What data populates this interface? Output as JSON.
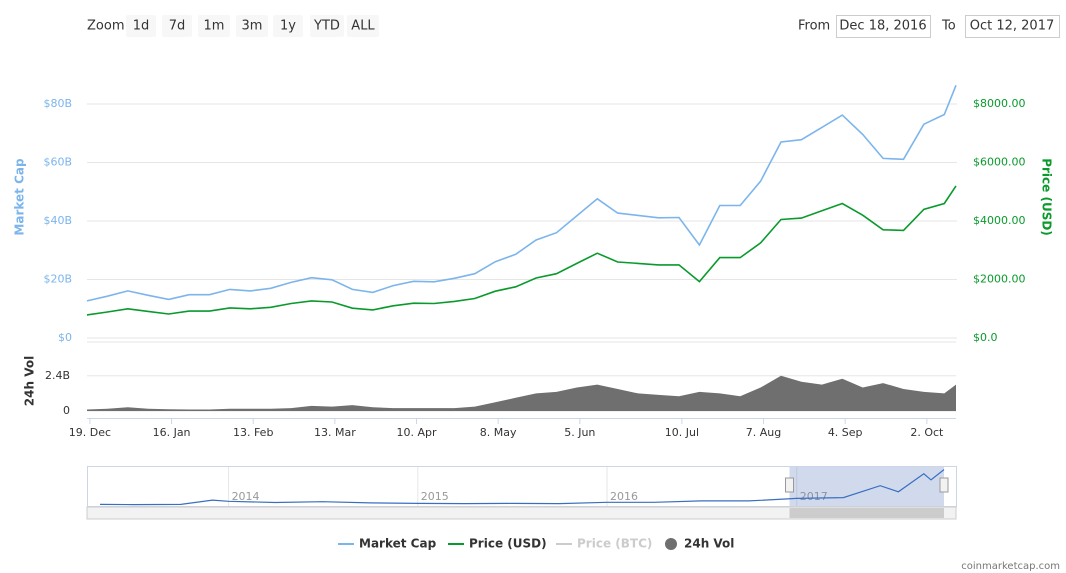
{
  "ui": {
    "zoom_label": "Zoom",
    "zoom_buttons": [
      "1d",
      "7d",
      "1m",
      "3m",
      "1y",
      "YTD",
      "ALL"
    ],
    "from_label": "From",
    "from_value": "Dec 18, 2016",
    "to_label": "To",
    "to_value": "Oct 12, 2017",
    "credit": "coinmarketcap.com"
  },
  "chart_data": {
    "type": "line",
    "y_label": "Market Cap",
    "y2_label": "Price (USD)",
    "y3_label": "24h Vol",
    "x": [
      "2016-12-18",
      "2016-12-25",
      "2017-01-01",
      "2017-01-08",
      "2017-01-15",
      "2017-01-22",
      "2017-01-29",
      "2017-02-05",
      "2017-02-12",
      "2017-02-19",
      "2017-02-26",
      "2017-03-05",
      "2017-03-12",
      "2017-03-19",
      "2017-03-26",
      "2017-04-02",
      "2017-04-09",
      "2017-04-16",
      "2017-04-23",
      "2017-04-30",
      "2017-05-07",
      "2017-05-14",
      "2017-05-21",
      "2017-05-28",
      "2017-06-04",
      "2017-06-11",
      "2017-06-18",
      "2017-06-25",
      "2017-07-02",
      "2017-07-09",
      "2017-07-16",
      "2017-07-23",
      "2017-07-30",
      "2017-08-06",
      "2017-08-13",
      "2017-08-20",
      "2017-08-27",
      "2017-09-03",
      "2017-09-10",
      "2017-09-17",
      "2017-09-24",
      "2017-10-01",
      "2017-10-08",
      "2017-10-12"
    ],
    "xlim": [
      "2016-12-18",
      "2017-10-12"
    ],
    "xticks": [
      {
        "value": "2016-12-19",
        "label": "19. Dec"
      },
      {
        "value": "2017-01-16",
        "label": "16. Jan"
      },
      {
        "value": "2017-02-13",
        "label": "13. Feb"
      },
      {
        "value": "2017-03-13",
        "label": "13. Mar"
      },
      {
        "value": "2017-04-10",
        "label": "10. Apr"
      },
      {
        "value": "2017-05-08",
        "label": "8. May"
      },
      {
        "value": "2017-06-05",
        "label": "5. Jun"
      },
      {
        "value": "2017-07-10",
        "label": "10. Jul"
      },
      {
        "value": "2017-08-07",
        "label": "7. Aug"
      },
      {
        "value": "2017-09-04",
        "label": "4. Sep"
      },
      {
        "value": "2017-10-02",
        "label": "2. Oct"
      }
    ],
    "ylim": [
      0,
      86.5
    ],
    "yticks": [
      {
        "value": 0,
        "label": "$0"
      },
      {
        "value": 20,
        "label": "$20B"
      },
      {
        "value": 40,
        "label": "$40B"
      },
      {
        "value": 60,
        "label": "$60B"
      },
      {
        "value": 80,
        "label": "$80B"
      }
    ],
    "y2lim": [
      0,
      8650
    ],
    "y2ticks": [
      {
        "value": 0,
        "label": "$0.0"
      },
      {
        "value": 2000,
        "label": "$2000.00"
      },
      {
        "value": 4000,
        "label": "$4000.00"
      },
      {
        "value": 6000,
        "label": "$6000.00"
      },
      {
        "value": 8000,
        "label": "$8000.00"
      }
    ],
    "y3lim": [
      0,
      4.5
    ],
    "y3ticks": [
      0,
      {
        "value": 2.4,
        "label": "2.4B"
      }
    ],
    "grid": true,
    "series": [
      {
        "name": "Market Cap",
        "color": "#7cb5ec",
        "axis": "y",
        "values": [
          12.7,
          14.3,
          16.1,
          14.6,
          13.2,
          14.8,
          14.8,
          16.6,
          16.1,
          17.0,
          19.0,
          20.6,
          19.9,
          16.6,
          15.6,
          17.9,
          19.4,
          19.2,
          20.4,
          22.0,
          26.1,
          28.6,
          33.5,
          36.0,
          41.8,
          47.6,
          42.7,
          41.9,
          41.1,
          41.2,
          31.8,
          45.3,
          45.3,
          53.6,
          67.0,
          67.8,
          72.0,
          76.2,
          69.6,
          61.4,
          61.1,
          73.1,
          76.4,
          86.4
        ]
      },
      {
        "name": "Price (USD)",
        "color": "#0a9a2c",
        "axis": "y2",
        "values": [
          790,
          890,
          1000,
          910,
          820,
          920,
          920,
          1030,
          1000,
          1050,
          1180,
          1270,
          1230,
          1020,
          960,
          1100,
          1190,
          1180,
          1250,
          1350,
          1600,
          1750,
          2050,
          2200,
          2550,
          2900,
          2600,
          2550,
          2500,
          2500,
          1930,
          2750,
          2750,
          3250,
          4050,
          4100,
          4350,
          4600,
          4200,
          3700,
          3680,
          4400,
          4600,
          5200
        ]
      },
      {
        "name": "Price (BTC)",
        "color": "#cccccc",
        "visible": false
      },
      {
        "name": "24h Vol",
        "color": "#6f6f6f",
        "axis": "y3",
        "values": [
          0.1,
          0.15,
          0.25,
          0.15,
          0.12,
          0.1,
          0.1,
          0.15,
          0.15,
          0.15,
          0.2,
          0.35,
          0.3,
          0.4,
          0.25,
          0.2,
          0.2,
          0.2,
          0.2,
          0.3,
          0.6,
          0.9,
          1.2,
          1.3,
          1.6,
          1.8,
          1.5,
          1.2,
          1.1,
          1.0,
          1.3,
          1.2,
          1.0,
          1.6,
          2.4,
          2.0,
          1.8,
          2.2,
          1.6,
          1.9,
          1.5,
          1.3,
          1.2,
          1.8
        ]
      }
    ],
    "navigator": {
      "x": [
        "2013-04-28",
        "2013-07-01",
        "2013-10-01",
        "2013-12-01",
        "2014-01-01",
        "2014-04-01",
        "2014-07-01",
        "2014-10-01",
        "2015-01-01",
        "2015-04-01",
        "2015-07-01",
        "2015-10-01",
        "2016-01-01",
        "2016-04-01",
        "2016-07-01",
        "2016-10-01",
        "2017-01-01",
        "2017-04-01",
        "2017-06-11",
        "2017-07-16",
        "2017-09-03",
        "2017-09-17",
        "2017-10-12"
      ],
      "values": [
        1.5,
        1.0,
        1.5,
        12,
        9,
        6,
        8,
        5,
        4,
        3.5,
        4,
        3.5,
        6.5,
        6.5,
        10,
        10,
        16,
        18,
        47,
        32,
        76,
        61,
        86
      ],
      "xlim": [
        "2013-04-28",
        "2017-10-12"
      ],
      "ylim": [
        0,
        90
      ],
      "xticks": [
        {
          "value": "2014-01-01",
          "label": "2014"
        },
        {
          "value": "2015-01-01",
          "label": "2015"
        },
        {
          "value": "2016-01-01",
          "label": "2016"
        },
        {
          "value": "2017-01-01",
          "label": "2017"
        }
      ]
    }
  }
}
